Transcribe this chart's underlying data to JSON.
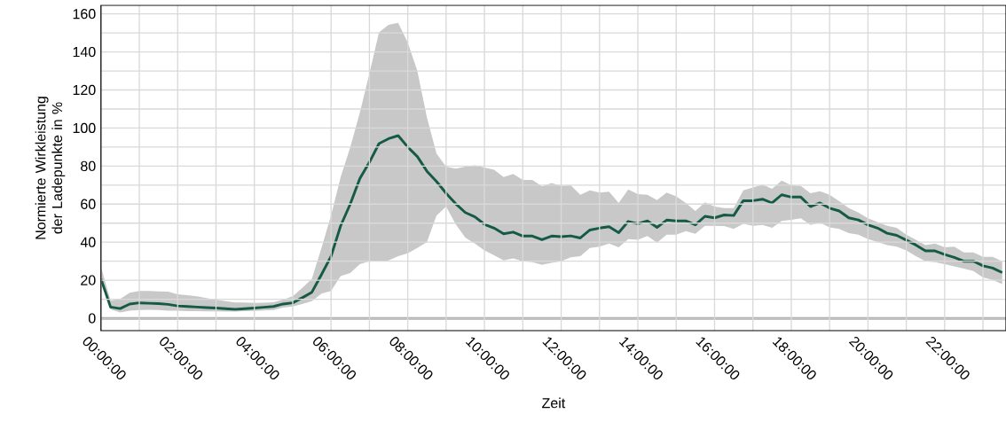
{
  "chart_data": {
    "type": "line",
    "xlabel": "Zeit",
    "ylabel": "Normierte Wirkleistung der Ladepunkte in %",
    "xlim": [
      0,
      23.6
    ],
    "ylim": [
      -6.5,
      164.5
    ],
    "xticks": [
      {
        "value": 0,
        "label": "00:00:00"
      },
      {
        "value": 1,
        "label": null
      },
      {
        "value": 2,
        "label": "02:00:00"
      },
      {
        "value": 3,
        "label": null
      },
      {
        "value": 4,
        "label": "04:00:00"
      },
      {
        "value": 5,
        "label": null
      },
      {
        "value": 6,
        "label": "06:00:00"
      },
      {
        "value": 7,
        "label": null
      },
      {
        "value": 8,
        "label": "08:00:00"
      },
      {
        "value": 9,
        "label": null
      },
      {
        "value": 10,
        "label": "10:00:00"
      },
      {
        "value": 11,
        "label": null
      },
      {
        "value": 12,
        "label": "12:00:00"
      },
      {
        "value": 13,
        "label": null
      },
      {
        "value": 14,
        "label": "14:00:00"
      },
      {
        "value": 15,
        "label": null
      },
      {
        "value": 16,
        "label": "16:00:00"
      },
      {
        "value": 17,
        "label": null
      },
      {
        "value": 18,
        "label": "18:00:00"
      },
      {
        "value": 19,
        "label": null
      },
      {
        "value": 20,
        "label": "20:00:00"
      },
      {
        "value": 21,
        "label": null
      },
      {
        "value": 22,
        "label": "22:00:00"
      },
      {
        "value": 23,
        "label": null
      }
    ],
    "yticks": [
      0,
      {
        "value": 10,
        "label": null
      },
      20,
      {
        "value": 30,
        "label": null
      },
      40,
      {
        "value": 50,
        "label": null
      },
      60,
      {
        "value": 70,
        "label": null
      },
      80,
      {
        "value": 90,
        "label": null
      },
      100,
      {
        "value": 110,
        "label": null
      },
      120,
      {
        "value": 130,
        "label": null
      },
      140,
      {
        "value": 150,
        "label": null
      },
      160
    ],
    "grid": true,
    "marker": "none",
    "line_style": "solid",
    "ref_lines": [
      {
        "axis": "y",
        "value": 0,
        "color": "#888888"
      }
    ],
    "x": [
      0,
      0.25,
      0.5,
      0.75,
      1,
      1.25,
      1.5,
      1.75,
      2,
      2.25,
      2.5,
      2.75,
      3,
      3.25,
      3.5,
      3.75,
      4,
      4.25,
      4.5,
      4.75,
      5,
      5.25,
      5.5,
      5.75,
      6,
      6.25,
      6.5,
      6.75,
      7,
      7.25,
      7.5,
      7.75,
      8,
      8.25,
      8.5,
      8.75,
      9,
      9.25,
      9.5,
      9.75,
      10,
      10.25,
      10.5,
      10.75,
      11,
      11.25,
      11.5,
      11.75,
      12,
      12.25,
      12.5,
      12.75,
      13,
      13.25,
      13.5,
      13.75,
      14,
      14.25,
      14.5,
      14.75,
      15,
      15.25,
      15.5,
      15.75,
      16,
      16.25,
      16.5,
      16.75,
      17,
      17.25,
      17.5,
      17.75,
      18,
      18.25,
      18.5,
      18.75,
      19,
      19.25,
      19.5,
      19.75,
      20,
      20.25,
      20.5,
      20.75,
      21,
      21.25,
      21.5,
      21.75,
      22,
      22.25,
      22.5,
      22.75,
      23,
      23.25,
      23.5
    ],
    "series": [
      {
        "color": "#145a46",
        "values": [
          20.7,
          5.9,
          5.1,
          7.5,
          8.1,
          7.9,
          7.7,
          7.3,
          6.5,
          6.2,
          5.9,
          5.6,
          5.4,
          5.0,
          4.7,
          5.0,
          5.4,
          5.8,
          6.2,
          7.5,
          8.1,
          10.8,
          13.7,
          23,
          32.6,
          48.6,
          60,
          73.4,
          82,
          91.8,
          94.4,
          96,
          90,
          85,
          77.3,
          71.9,
          65.7,
          60.2,
          55.6,
          53.3,
          49.4,
          47.4,
          44.4,
          45.3,
          43.2,
          43.2,
          41.3,
          43.2,
          42.9,
          43.3,
          42.2,
          46.4,
          47.4,
          48.1,
          45,
          50.9,
          49.7,
          51.2,
          47.8,
          51.6,
          51.2,
          51.2,
          49.1,
          53.6,
          52.8,
          54.3,
          54,
          61.8,
          61.8,
          62.6,
          60.6,
          64.9,
          63.7,
          63.7,
          58.7,
          60.6,
          57.9,
          56.4,
          52.8,
          51.7,
          49.1,
          47.4,
          44.7,
          43.6,
          41.1,
          38.5,
          35.4,
          35.4,
          33.5,
          32,
          30,
          30,
          27.6,
          26.4,
          24
        ],
        "upper": [
          27,
          9.3,
          10.2,
          13.4,
          14.4,
          14.3,
          14.1,
          14,
          12.6,
          12.1,
          11.6,
          10.6,
          9.8,
          9,
          8.3,
          8.3,
          8.1,
          8.2,
          8.4,
          9.8,
          11.6,
          16,
          20.7,
          37,
          54,
          74.2,
          89.8,
          108,
          128.6,
          150.3,
          154.2,
          155.3,
          144.9,
          130,
          105.6,
          86.6,
          79.7,
          78.6,
          79.7,
          80.4,
          79.2,
          78.1,
          74.2,
          75.8,
          72.7,
          72.7,
          69.3,
          71.1,
          69.6,
          69.9,
          64.9,
          67.2,
          66.1,
          66.5,
          60.6,
          67.7,
          65.2,
          64.9,
          62.1,
          66.1,
          64.1,
          60.6,
          56.4,
          61,
          58.7,
          57.9,
          57.9,
          67.2,
          68.8,
          70.3,
          68,
          72.4,
          69.9,
          69.6,
          65.7,
          66.8,
          64.9,
          61.5,
          57.9,
          55.6,
          52.5,
          50.6,
          48.6,
          47.5,
          43.9,
          41.3,
          38.5,
          39.3,
          37.3,
          37.7,
          34.6,
          34.6,
          32.3,
          32.3,
          30
        ],
        "lower": [
          19,
          4.7,
          3.1,
          4,
          4.3,
          4.4,
          4.3,
          4,
          4,
          3.8,
          3.7,
          3.6,
          3.6,
          3.5,
          3.5,
          3.8,
          3.9,
          4.1,
          4.3,
          5.6,
          6.2,
          7.5,
          9,
          12.9,
          14.4,
          22.2,
          23.8,
          28.4,
          30,
          30,
          30.4,
          32.6,
          34.2,
          37,
          40.1,
          54,
          58.7,
          49.4,
          42.4,
          39.3,
          35.7,
          33.1,
          30.4,
          31.5,
          30,
          29.5,
          28.1,
          29.2,
          30,
          32,
          32.6,
          37,
          37.7,
          39.3,
          37.3,
          41.6,
          41.3,
          43.2,
          39.8,
          43.9,
          43.9,
          45.8,
          44.4,
          48.6,
          48.6,
          48.5,
          47,
          49.7,
          48.6,
          49.1,
          47.5,
          51.2,
          51.7,
          52.5,
          49.1,
          50.2,
          47.8,
          47,
          44.7,
          43.9,
          41.6,
          40.1,
          38.5,
          37.7,
          35.7,
          32.6,
          30,
          29.5,
          28.4,
          27.3,
          26.1,
          24.8,
          21.4,
          20.2,
          18
        ]
      }
    ]
  }
}
